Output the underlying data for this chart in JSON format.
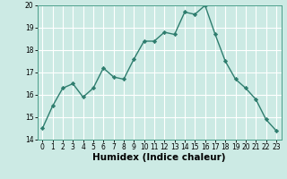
{
  "x": [
    0,
    1,
    2,
    3,
    4,
    5,
    6,
    7,
    8,
    9,
    10,
    11,
    12,
    13,
    14,
    15,
    16,
    17,
    18,
    19,
    20,
    21,
    22,
    23
  ],
  "y": [
    14.5,
    15.5,
    16.3,
    16.5,
    15.9,
    16.3,
    17.2,
    16.8,
    16.7,
    17.6,
    18.4,
    18.4,
    18.8,
    18.7,
    19.7,
    19.6,
    20.0,
    18.7,
    17.5,
    16.7,
    16.3,
    15.8,
    14.9,
    14.4
  ],
  "line_color": "#2e7d6e",
  "marker": "D",
  "marker_size": 2.2,
  "bg_color": "#cceae4",
  "grid_color": "#ffffff",
  "xlabel": "Humidex (Indice chaleur)",
  "ylim": [
    14,
    20
  ],
  "xlim": [
    -0.5,
    23.5
  ],
  "yticks": [
    14,
    15,
    16,
    17,
    18,
    19,
    20
  ],
  "xticks": [
    0,
    1,
    2,
    3,
    4,
    5,
    6,
    7,
    8,
    9,
    10,
    11,
    12,
    13,
    14,
    15,
    16,
    17,
    18,
    19,
    20,
    21,
    22,
    23
  ],
  "tick_fontsize": 5.5,
  "xlabel_fontsize": 7.5,
  "xlabel_fontweight": "bold",
  "linewidth": 1.0
}
